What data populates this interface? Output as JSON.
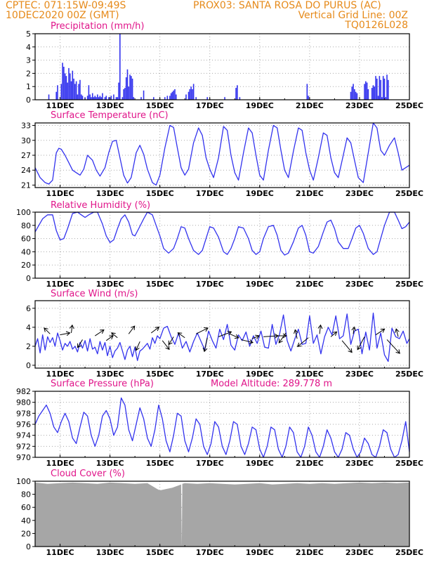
{
  "header": {
    "line1_left": "CPTEC:   071:15W-09:49S",
    "line1_right": "PROX03: SANTA ROSA DO PURUS (AC)",
    "line2_left": "10DEC2020 00Z (GMT)",
    "line2_right": "Vertical Grid Line: 00Z",
    "line3_right": "TQ0126L028"
  },
  "colors": {
    "header": "#e68a1a",
    "title": "#e0158a",
    "series": "#3333ee",
    "cloud": "#a6a6a6",
    "grid": "#aaaaaa"
  },
  "x_axis": {
    "day_min": 10,
    "day_max": 25,
    "tick_days": [
      11,
      13,
      15,
      17,
      19,
      21,
      23,
      25
    ],
    "tick_labels": [
      "11DEC",
      "13DEC",
      "15DEC",
      "17DEC",
      "19DEC",
      "21DEC",
      "23DEC",
      "25DEC"
    ]
  },
  "chart_data": [
    {
      "id": "precip",
      "type": "bar",
      "title": "Precipitation (mm/h)",
      "ylim": [
        0,
        5
      ],
      "yticks": [
        0,
        1,
        2,
        3,
        4,
        5
      ],
      "x": [
        10.55,
        10.85,
        10.9,
        11.05,
        11.1,
        11.15,
        11.2,
        11.25,
        11.3,
        11.35,
        11.4,
        11.45,
        11.5,
        11.55,
        11.6,
        11.65,
        11.7,
        11.75,
        11.8,
        11.85,
        11.9,
        12.0,
        12.1,
        12.15,
        12.2,
        12.25,
        12.3,
        12.35,
        12.4,
        12.45,
        12.5,
        12.55,
        12.6,
        12.65,
        12.7,
        12.8,
        12.85,
        12.95,
        13.05,
        13.15,
        13.25,
        13.3,
        13.35,
        13.4,
        13.5,
        13.55,
        13.6,
        13.65,
        13.7,
        13.75,
        13.8,
        13.85,
        13.9,
        13.95,
        14.25,
        14.35,
        14.75,
        15.2,
        15.3,
        15.4,
        15.45,
        15.5,
        15.55,
        15.6,
        15.65,
        16.05,
        16.15,
        16.2,
        16.25,
        16.3,
        16.35,
        16.45,
        16.9,
        17.6,
        18.05,
        18.1,
        18.2,
        20.9,
        20.95,
        22.65,
        22.7,
        22.75,
        22.8,
        22.85,
        22.9,
        23.2,
        23.25,
        23.3,
        23.35,
        23.5,
        23.55,
        23.6,
        23.65,
        23.7,
        23.75,
        23.8,
        23.85,
        23.9,
        23.95,
        24.0,
        24.05,
        24.1,
        24.15
      ],
      "values": [
        0.4,
        0.6,
        1.1,
        1.2,
        2.8,
        2.5,
        2.0,
        1.8,
        1.3,
        2.4,
        2.0,
        1.4,
        2.2,
        1.6,
        1.2,
        1.4,
        0.4,
        1.2,
        1.5,
        0.4,
        0.3,
        0.2,
        0.3,
        1.1,
        0.4,
        0.2,
        0.5,
        0.2,
        0.3,
        0.2,
        0.4,
        0.2,
        0.3,
        0.2,
        0.5,
        0.2,
        0.3,
        0.2,
        0.3,
        0.4,
        0.2,
        0.2,
        1.3,
        5.0,
        0.2,
        0.8,
        0.9,
        1.7,
        2.3,
        1.0,
        1.9,
        1.8,
        1.6,
        0.2,
        0.2,
        0.7,
        0.2,
        0.2,
        0.3,
        0.3,
        0.5,
        0.6,
        0.7,
        0.8,
        0.4,
        0.4,
        0.6,
        0.8,
        1.0,
        0.8,
        1.2,
        0.2,
        0.2,
        0.2,
        0.9,
        1.1,
        0.2,
        1.2,
        0.3,
        0.6,
        1.0,
        1.2,
        0.8,
        0.6,
        0.5,
        1.2,
        1.4,
        1.3,
        0.8,
        0.9,
        1.1,
        1.0,
        1.8,
        1.6,
        0.3,
        1.8,
        1.5,
        0.2,
        1.8,
        1.6,
        0.2,
        1.9,
        1.5
      ]
    },
    {
      "id": "temp",
      "type": "line",
      "title": "Surface Temperature (nC)",
      "ylim": [
        20.5,
        33.5
      ],
      "yticks": [
        21,
        24,
        27,
        30,
        33
      ],
      "x": [
        10.0,
        10.2,
        10.4,
        10.55,
        10.7,
        10.85,
        10.95,
        11.05,
        11.2,
        11.35,
        11.5,
        11.65,
        11.8,
        11.95,
        12.1,
        12.3,
        12.45,
        12.6,
        12.8,
        12.95,
        13.1,
        13.25,
        13.4,
        13.55,
        13.7,
        13.85,
        13.95,
        14.05,
        14.2,
        14.35,
        14.5,
        14.7,
        14.85,
        15.0,
        15.2,
        15.4,
        15.55,
        15.7,
        15.85,
        16.0,
        16.15,
        16.35,
        16.55,
        16.7,
        16.85,
        17.0,
        17.15,
        17.35,
        17.55,
        17.7,
        17.85,
        18.0,
        18.15,
        18.35,
        18.55,
        18.7,
        18.85,
        19.0,
        19.15,
        19.35,
        19.55,
        19.7,
        19.85,
        20.0,
        20.15,
        20.35,
        20.55,
        20.7,
        20.85,
        21.0,
        21.15,
        21.35,
        21.55,
        21.7,
        21.85,
        22.0,
        22.15,
        22.35,
        22.5,
        22.65,
        22.8,
        22.95,
        23.15,
        23.35,
        23.55,
        23.7,
        23.85,
        24.0,
        24.2,
        24.4,
        24.55,
        24.7,
        24.85,
        25.0
      ],
      "values": [
        24.5,
        22.5,
        21.5,
        21.2,
        22.0,
        27.5,
        28.4,
        28.2,
        27.0,
        25.5,
        24.0,
        23.5,
        23.0,
        24.2,
        27.0,
        26.0,
        24.0,
        22.8,
        24.5,
        27.5,
        29.8,
        30.0,
        26.5,
        23.0,
        21.4,
        22.5,
        25.0,
        27.5,
        29.0,
        27.2,
        24.2,
        21.5,
        21.0,
        23.0,
        28.5,
        33.0,
        32.6,
        28.5,
        24.5,
        23.0,
        24.2,
        29.5,
        32.5,
        31.0,
        26.5,
        24.2,
        22.5,
        26.5,
        32.8,
        32.0,
        27.0,
        23.5,
        22.0,
        27.5,
        32.5,
        31.5,
        27.0,
        23.0,
        22.0,
        28.0,
        33.0,
        32.5,
        28.0,
        24.0,
        22.5,
        27.8,
        32.5,
        32.0,
        27.5,
        24.0,
        22.0,
        26.5,
        31.5,
        31.0,
        26.5,
        23.5,
        22.5,
        27.0,
        30.5,
        29.5,
        26.0,
        22.5,
        21.5,
        27.5,
        33.5,
        32.5,
        28.0,
        27.0,
        29.0,
        30.5,
        27.5,
        24.0,
        24.5,
        25.0
      ]
    },
    {
      "id": "rh",
      "type": "line",
      "title": "Relative Humidity (%)",
      "ylim": [
        0,
        100
      ],
      "yticks": [
        0,
        20,
        40,
        60,
        80,
        100
      ],
      "x": [
        10.0,
        10.15,
        10.3,
        10.5,
        10.7,
        10.85,
        11.0,
        11.15,
        11.3,
        11.5,
        11.7,
        11.85,
        12.0,
        12.15,
        12.35,
        12.5,
        12.7,
        12.85,
        13.0,
        13.15,
        13.3,
        13.45,
        13.6,
        13.75,
        13.9,
        14.0,
        14.15,
        14.35,
        14.5,
        14.7,
        14.85,
        15.0,
        15.15,
        15.35,
        15.55,
        15.7,
        15.85,
        16.0,
        16.15,
        16.35,
        16.55,
        16.7,
        16.85,
        17.0,
        17.15,
        17.35,
        17.55,
        17.7,
        17.85,
        18.0,
        18.15,
        18.35,
        18.55,
        18.7,
        18.85,
        19.0,
        19.15,
        19.35,
        19.55,
        19.7,
        19.85,
        20.0,
        20.15,
        20.35,
        20.55,
        20.7,
        20.85,
        21.0,
        21.15,
        21.35,
        21.55,
        21.7,
        21.85,
        22.0,
        22.15,
        22.35,
        22.55,
        22.7,
        22.85,
        23.0,
        23.15,
        23.35,
        23.55,
        23.7,
        23.85,
        24.0,
        24.2,
        24.4,
        24.55,
        24.7,
        24.85,
        25.0
      ],
      "values": [
        70,
        80,
        90,
        96,
        96,
        72,
        58,
        60,
        75,
        98,
        100,
        96,
        92,
        96,
        100,
        100,
        82,
        64,
        54,
        58,
        75,
        90,
        96,
        85,
        66,
        64,
        75,
        90,
        100,
        96,
        80,
        64,
        45,
        38,
        45,
        60,
        78,
        76,
        60,
        42,
        36,
        42,
        60,
        78,
        76,
        62,
        40,
        36,
        45,
        60,
        78,
        76,
        60,
        42,
        36,
        40,
        60,
        78,
        80,
        65,
        42,
        35,
        38,
        55,
        76,
        80,
        65,
        40,
        38,
        48,
        70,
        85,
        88,
        75,
        55,
        45,
        45,
        60,
        76,
        80,
        68,
        45,
        36,
        40,
        60,
        80,
        100,
        100,
        88,
        75,
        78,
        85
      ]
    },
    {
      "id": "wind",
      "type": "line",
      "title": "Surface Wind (m/s)",
      "ylim": [
        -0.3,
        6.8
      ],
      "yticks": [
        0,
        2,
        4,
        6
      ],
      "x": [
        10.0,
        10.1,
        10.2,
        10.3,
        10.4,
        10.5,
        10.6,
        10.7,
        10.8,
        10.9,
        11.0,
        11.1,
        11.2,
        11.3,
        11.4,
        11.5,
        11.6,
        11.7,
        11.8,
        11.9,
        12.0,
        12.1,
        12.2,
        12.3,
        12.4,
        12.5,
        12.6,
        12.7,
        12.8,
        12.9,
        13.0,
        13.1,
        13.2,
        13.3,
        13.4,
        13.5,
        13.6,
        13.7,
        13.8,
        13.9,
        14.0,
        14.1,
        14.2,
        14.3,
        14.4,
        14.5,
        14.6,
        14.7,
        14.8,
        14.9,
        15.0,
        15.15,
        15.3,
        15.45,
        15.6,
        15.75,
        15.9,
        16.05,
        16.2,
        16.35,
        16.5,
        16.65,
        16.8,
        16.95,
        17.1,
        17.25,
        17.4,
        17.55,
        17.7,
        17.85,
        18.0,
        18.15,
        18.3,
        18.45,
        18.6,
        18.75,
        18.9,
        19.05,
        19.2,
        19.35,
        19.5,
        19.65,
        19.8,
        19.95,
        20.1,
        20.25,
        20.4,
        20.55,
        20.7,
        20.85,
        21.0,
        21.15,
        21.3,
        21.45,
        21.6,
        21.75,
        21.9,
        22.05,
        22.2,
        22.35,
        22.5,
        22.65,
        22.8,
        22.95,
        23.1,
        23.25,
        23.4,
        23.55,
        23.7,
        23.85,
        24.0,
        24.15,
        24.3,
        24.45,
        24.6,
        24.75,
        24.9,
        25.0
      ],
      "values": [
        2.0,
        2.8,
        1.3,
        3.2,
        1.6,
        3.0,
        2.4,
        2.9,
        2.0,
        3.4,
        2.6,
        1.6,
        2.3,
        2.0,
        2.5,
        1.7,
        2.0,
        1.4,
        2.4,
        1.8,
        2.6,
        1.5,
        2.8,
        1.7,
        1.9,
        1.2,
        2.5,
        1.6,
        2.4,
        1.0,
        2.0,
        0.8,
        1.5,
        1.8,
        2.4,
        1.5,
        0.6,
        1.6,
        2.0,
        0.9,
        1.9,
        0.5,
        1.5,
        1.7,
        2.0,
        2.3,
        1.7,
        2.9,
        2.3,
        3.1,
        2.8,
        3.9,
        4.1,
        3.0,
        2.2,
        3.4,
        1.8,
        2.5,
        1.4,
        2.5,
        3.4,
        2.5,
        1.6,
        3.6,
        2.6,
        1.8,
        3.8,
        2.7,
        4.3,
        2.1,
        1.6,
        3.2,
        2.6,
        3.5,
        2.0,
        3.1,
        2.3,
        3.6,
        1.9,
        1.8,
        4.3,
        2.2,
        3.3,
        5.3,
        2.6,
        1.5,
        2.7,
        3.8,
        2.2,
        2.3,
        5.2,
        2.3,
        3.2,
        1.2,
        3.0,
        4.0,
        3.2,
        5.2,
        2.8,
        3.1,
        5.4,
        2.2,
        3.6,
        3.8,
        1.2,
        3.5,
        1.6,
        5.5,
        1.8,
        3.4,
        1.1,
        0.4,
        3.9,
        3.0,
        2.8,
        3.6,
        2.3,
        2.8
      ]
    },
    {
      "id": "pressure",
      "type": "line",
      "title": "Surface Pressure (hPa)",
      "annotation": "Model Altitude: 289.778 m",
      "ylim": [
        970,
        982
      ],
      "yticks": [
        970,
        972,
        974,
        976,
        978,
        980,
        982
      ],
      "x": [
        10.0,
        10.15,
        10.3,
        10.45,
        10.6,
        10.75,
        10.9,
        11.05,
        11.2,
        11.35,
        11.5,
        11.65,
        11.8,
        11.95,
        12.1,
        12.25,
        12.4,
        12.55,
        12.7,
        12.85,
        13.0,
        13.15,
        13.3,
        13.45,
        13.6,
        13.75,
        13.9,
        14.05,
        14.2,
        14.35,
        14.5,
        14.65,
        14.8,
        14.95,
        15.1,
        15.25,
        15.4,
        15.55,
        15.7,
        15.85,
        16.0,
        16.15,
        16.3,
        16.45,
        16.6,
        16.75,
        16.9,
        17.05,
        17.2,
        17.35,
        17.5,
        17.65,
        17.8,
        17.95,
        18.1,
        18.25,
        18.4,
        18.55,
        18.7,
        18.85,
        19.0,
        19.15,
        19.3,
        19.45,
        19.6,
        19.75,
        19.9,
        20.05,
        20.2,
        20.35,
        20.5,
        20.65,
        20.8,
        20.95,
        21.1,
        21.25,
        21.4,
        21.55,
        21.7,
        21.85,
        22.0,
        22.15,
        22.3,
        22.45,
        22.6,
        22.75,
        22.9,
        23.05,
        23.2,
        23.35,
        23.5,
        23.65,
        23.8,
        23.95,
        24.1,
        24.25,
        24.4,
        24.55,
        24.7,
        24.85,
        25.0
      ],
      "values": [
        976.0,
        977.5,
        978.5,
        979.5,
        978.0,
        975.5,
        974.5,
        976.5,
        978.0,
        976.5,
        973.5,
        972.5,
        975.5,
        978.2,
        977.5,
        974.0,
        972.0,
        974.0,
        977.5,
        978.5,
        977.0,
        974.0,
        975.5,
        980.8,
        979.5,
        975.0,
        973.0,
        976.0,
        979.0,
        977.0,
        973.5,
        972.0,
        975.0,
        979.5,
        977.0,
        973.0,
        971.0,
        974.0,
        978.0,
        977.5,
        973.0,
        971.0,
        973.5,
        977.0,
        976.0,
        972.0,
        970.5,
        972.5,
        976.5,
        975.5,
        972.0,
        970.5,
        973.0,
        976.5,
        976.0,
        972.0,
        970.5,
        972.5,
        975.5,
        975.0,
        971.5,
        970.0,
        972.0,
        975.5,
        975.0,
        971.5,
        970.0,
        972.0,
        975.5,
        974.5,
        971.0,
        970.0,
        972.0,
        975.5,
        974.0,
        971.0,
        970.0,
        972.0,
        975.0,
        973.5,
        971.0,
        970.0,
        971.5,
        974.5,
        974.0,
        971.5,
        970.0,
        971.0,
        973.5,
        972.5,
        970.5,
        970.0,
        972.0,
        975.0,
        974.5,
        971.5,
        970.0,
        970.5,
        973.0,
        976.5,
        971.0
      ]
    },
    {
      "id": "cloud",
      "type": "area",
      "title": "Cloud Cover (%)",
      "ylim": [
        0,
        100
      ],
      "yticks": [
        0,
        20,
        40,
        60,
        80,
        100
      ],
      "x": [
        10.0,
        10.5,
        11.0,
        11.5,
        12.0,
        12.5,
        13.0,
        13.5,
        14.0,
        14.5,
        14.9,
        15.0,
        15.5,
        15.85,
        15.88,
        15.9,
        16.0,
        16.5,
        17.0,
        17.5,
        18.0,
        18.5,
        19.0,
        19.5,
        20.0,
        20.5,
        21.0,
        21.5,
        22.0,
        22.5,
        23.0,
        23.5,
        24.0,
        24.5,
        25.0
      ],
      "values": [
        98,
        96,
        97,
        98,
        97,
        96,
        98,
        97,
        96,
        97,
        88,
        86,
        90,
        95,
        0,
        96,
        97,
        96,
        97,
        96,
        95,
        96,
        97,
        95,
        96,
        97,
        96,
        97,
        96,
        97,
        98,
        97,
        98,
        97,
        98
      ]
    }
  ],
  "wind_arrows": {
    "x": [
      10.6,
      11.0,
      11.45,
      11.9,
      12.4,
      12.85,
      13.3,
      13.75,
      14.2,
      14.65,
      15.1,
      15.55,
      16.0,
      16.45,
      16.9,
      17.35,
      17.8,
      18.25,
      18.7,
      19.15,
      19.6,
      20.05,
      20.5,
      20.95,
      21.4,
      21.85,
      22.3,
      22.75,
      23.2,
      23.65,
      24.1,
      24.55
    ],
    "y": [
      3.3,
      3.2,
      3.4,
      2.7,
      3.1,
      2.6,
      2.9,
      3.3,
      2.5,
      3.4,
      2.6,
      3.0,
      2.9,
      3.3,
      2.9,
      3.0,
      3.3,
      2.7,
      2.8,
      3.0,
      3.1,
      3.4,
      2.8,
      2.9,
      3.3,
      3.0,
      2.6,
      3.3,
      3.0,
      3.2,
      2.7,
      3.0
    ],
    "u": [
      -0.6,
      1.0,
      0.1,
      -0.5,
      0.9,
      0.7,
      -0.6,
      0.6,
      -0.4,
      0.8,
      0.7,
      -0.5,
      -0.7,
      1.2,
      -0.3,
      1.3,
      0.9,
      1.2,
      0.7,
      1.5,
      1.2,
      -0.7,
      -0.2,
      -1.1,
      0.1,
      0.6,
      1.0,
      0.1,
      -0.7,
      0.9,
      1.3,
      -0.2
    ],
    "v": [
      0.6,
      0.2,
      0.8,
      -0.8,
      0.6,
      0.5,
      0.5,
      0.8,
      -0.9,
      0.6,
      -0.9,
      -0.8,
      0.5,
      0.6,
      -1.4,
      0.5,
      -0.4,
      -0.3,
      0.3,
      0.1,
      0.0,
      -1.0,
      0.9,
      -0.9,
      0.9,
      0.5,
      -1.2,
      0.7,
      -1.3,
      0.6,
      -1.4,
      0.8
    ]
  }
}
